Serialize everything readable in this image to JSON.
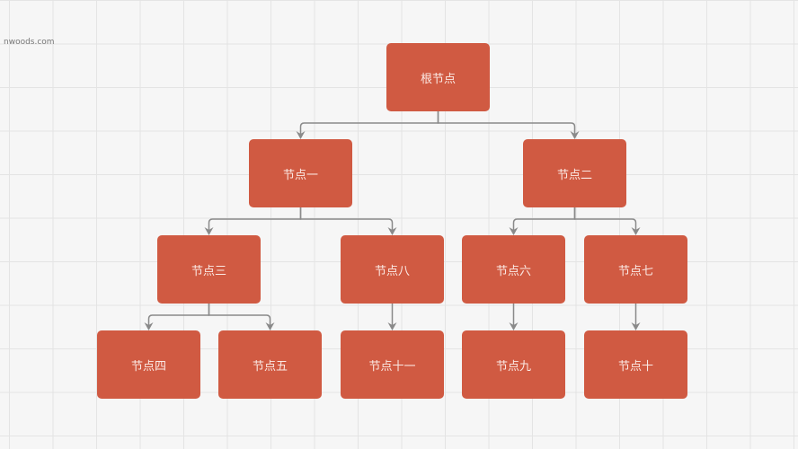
{
  "watermark": "nwoods.com",
  "colors": {
    "node": "#d05a42",
    "link": "#8a8a8a"
  },
  "nodes": [
    {
      "id": "root",
      "label": "根节点"
    },
    {
      "id": "n1",
      "label": "节点一"
    },
    {
      "id": "n2",
      "label": "节点二"
    },
    {
      "id": "n3",
      "label": "节点三"
    },
    {
      "id": "n8",
      "label": "节点八"
    },
    {
      "id": "n6",
      "label": "节点六"
    },
    {
      "id": "n7",
      "label": "节点七"
    },
    {
      "id": "n4",
      "label": "节点四"
    },
    {
      "id": "n5",
      "label": "节点五"
    },
    {
      "id": "n11",
      "label": "节点十一"
    },
    {
      "id": "n9",
      "label": "节点九"
    },
    {
      "id": "n10",
      "label": "节点十"
    }
  ],
  "links": [
    [
      "root",
      "n1"
    ],
    [
      "root",
      "n2"
    ],
    [
      "n1",
      "n3"
    ],
    [
      "n1",
      "n8"
    ],
    [
      "n2",
      "n6"
    ],
    [
      "n2",
      "n7"
    ],
    [
      "n3",
      "n4"
    ],
    [
      "n3",
      "n5"
    ],
    [
      "n8",
      "n11"
    ],
    [
      "n6",
      "n9"
    ],
    [
      "n7",
      "n10"
    ]
  ]
}
